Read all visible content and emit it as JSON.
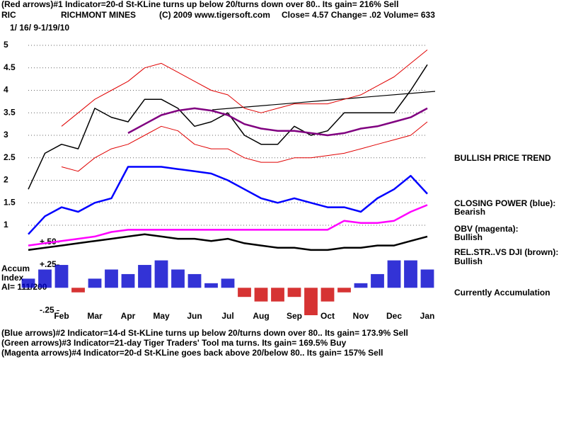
{
  "chart_data": {
    "type": "line",
    "title": "(Red arrows)#1 Indicator=20-d St-KLine turns up below 20/turns down over 80.. Its gain= 216% Sell",
    "subtitle": [
      "RIC",
      "RICHMONT MINES",
      "(C) 2009 www.tigersoft.com",
      "Close=  4.57  Change= .02 Volume= 633",
      "1/ 16/ 9-1/19/10"
    ],
    "annotations": [
      "BULLISH PRICE TREND",
      "CLOSING POWER (blue):",
      "Bearish",
      "OBV (magenta):",
      "Bullish",
      "REL.STR..VS DJI (brown):",
      "Bullish",
      "Currently Accumulation",
      "Accum",
      "Index",
      "AI= 111/200"
    ],
    "notes": [
      "(Blue arrows)#2 Indicator=14-d St-KLine turns up below 20/turns down over 80.. Its gain= 173.9% Sell",
      "(Green arrows)#3 Indicator=21-day Tiger Traders' Tool ma turns. Its gain= 169.5% Buy",
      "(Magenta arrows)#4 Indicator=20-d St-KLine goes back above 20/below 80.. Its gain= 157% Sell"
    ],
    "categories": [
      null,
      null,
      "Feb",
      null,
      "Mar",
      null,
      "Apr",
      null,
      "May",
      null,
      "Jun",
      null,
      "Jul",
      null,
      "Aug",
      null,
      "Sep",
      null,
      "Oct",
      null,
      "Nov",
      null,
      "Dec",
      null,
      "Jan"
    ],
    "series": [
      {
        "color": "#000000",
        "width": 1.5,
        "values": [
          1.8,
          2.6,
          2.8,
          2.7,
          3.6,
          3.4,
          3.3,
          3.8,
          3.8,
          3.6,
          3.2,
          3.3,
          3.5,
          3.0,
          2.8,
          2.8,
          3.2,
          3.0,
          3.1,
          3.5,
          3.5,
          3.5,
          3.5,
          4.0,
          4.57
        ]
      },
      {
        "color": "#e00000",
        "width": 1,
        "values": [
          null,
          null,
          3.2,
          3.5,
          3.8,
          4.0,
          4.2,
          4.5,
          4.6,
          4.4,
          4.2,
          4.0,
          3.9,
          3.6,
          3.5,
          3.6,
          3.7,
          3.7,
          3.7,
          3.8,
          3.9,
          4.1,
          4.3,
          4.6,
          4.9
        ]
      },
      {
        "color": "#e00000",
        "width": 1,
        "values": [
          null,
          null,
          2.3,
          2.2,
          2.5,
          2.7,
          2.8,
          3.0,
          3.2,
          3.1,
          2.8,
          2.7,
          2.7,
          2.5,
          2.4,
          2.4,
          2.5,
          2.5,
          2.55,
          2.6,
          2.7,
          2.8,
          2.9,
          3.0,
          3.3
        ]
      },
      {
        "color": "#800080",
        "width": 2.5,
        "values": [
          null,
          null,
          null,
          null,
          null,
          null,
          3.05,
          3.25,
          3.45,
          3.55,
          3.6,
          3.55,
          3.45,
          3.25,
          3.15,
          3.1,
          3.1,
          3.05,
          3.0,
          3.05,
          3.15,
          3.2,
          3.3,
          3.4,
          3.6
        ]
      },
      {
        "color": "#0000ff",
        "width": 2.5,
        "values": [
          0.8,
          1.2,
          1.4,
          1.3,
          1.5,
          1.6,
          2.3,
          2.3,
          2.3,
          2.25,
          2.2,
          2.15,
          2.0,
          1.8,
          1.6,
          1.5,
          1.6,
          1.5,
          1.4,
          1.4,
          1.3,
          1.6,
          1.8,
          2.1,
          1.7
        ]
      },
      {
        "color": "#ff00ff",
        "width": 2.5,
        "values": [
          0.55,
          0.6,
          0.65,
          0.7,
          0.75,
          0.85,
          0.9,
          0.9,
          0.9,
          0.9,
          0.9,
          0.9,
          0.9,
          0.9,
          0.9,
          0.9,
          0.9,
          0.9,
          0.9,
          1.1,
          1.05,
          1.05,
          1.1,
          1.3,
          1.45
        ]
      },
      {
        "color": "#000000",
        "width": 2.5,
        "values": [
          0.45,
          0.5,
          0.55,
          0.6,
          0.65,
          0.7,
          0.75,
          0.8,
          0.75,
          0.7,
          0.7,
          0.65,
          0.7,
          0.6,
          0.55,
          0.5,
          0.5,
          0.45,
          0.45,
          0.5,
          0.5,
          0.55,
          0.55,
          0.65,
          0.75
        ]
      },
      {
        "color": "#0000cc",
        "negative_color": "#cc0000",
        "axis": "y2",
        "kind": "bar",
        "values": [
          0.1,
          0.2,
          0.25,
          -0.05,
          0.1,
          0.2,
          0.15,
          0.25,
          0.3,
          0.2,
          0.15,
          0.05,
          0.1,
          -0.1,
          -0.15,
          -0.15,
          -0.1,
          -0.3,
          -0.15,
          -0.05,
          0.05,
          0.15,
          0.3,
          0.3,
          0.2
        ]
      }
    ],
    "ylim": [
      -1,
      5.3
    ],
    "yticks": [
      1,
      1.5,
      2,
      2.5,
      3,
      3.5,
      4,
      4.5,
      5
    ],
    "y2lim": [
      -0.3,
      2.8
    ],
    "y2ticks": [
      {
        "value": -0.25,
        "label": "-.25"
      },
      {
        "value": 0.25,
        "label": "+.25"
      },
      {
        "value": 0.5,
        "label": "+.50"
      }
    ],
    "grid": true
  }
}
